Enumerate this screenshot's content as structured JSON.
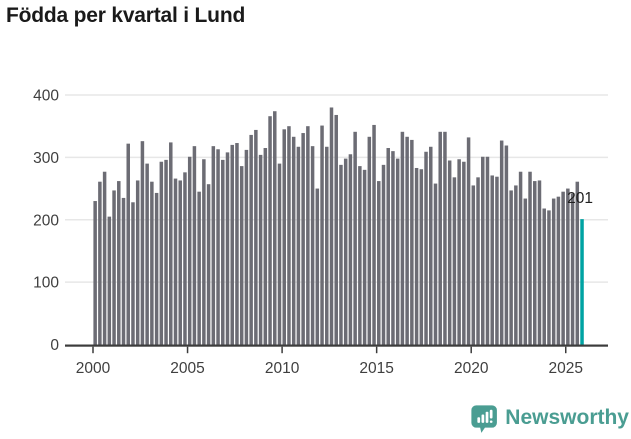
{
  "page_title": "Födda per kvartal i Lund",
  "chart_data": {
    "type": "bar",
    "title": "Födda per kvartal i Lund",
    "xlabel": "",
    "ylabel": "",
    "ylim": [
      0,
      400
    ],
    "grid": true,
    "y_ticks": [
      0,
      100,
      200,
      300,
      400
    ],
    "y_tick_labels": [
      "0",
      "100",
      "200",
      "300",
      "400"
    ],
    "x_ticks": [
      2000,
      2005,
      2010,
      2015,
      2020,
      2025
    ],
    "x_tick_labels": [
      "2000",
      "2005",
      "2010",
      "2015",
      "2020",
      "2025"
    ],
    "bar_color": "#6c6c74",
    "highlight_color": "#00a3a3",
    "highlight_index": 103,
    "annotation": {
      "text": "201",
      "target": "2025-Q4"
    },
    "categories": [
      "2000-Q1",
      "2000-Q2",
      "2000-Q3",
      "2000-Q4",
      "2001-Q1",
      "2001-Q2",
      "2001-Q3",
      "2001-Q4",
      "2002-Q1",
      "2002-Q2",
      "2002-Q3",
      "2002-Q4",
      "2003-Q1",
      "2003-Q2",
      "2003-Q3",
      "2003-Q4",
      "2004-Q1",
      "2004-Q2",
      "2004-Q3",
      "2004-Q4",
      "2005-Q1",
      "2005-Q2",
      "2005-Q3",
      "2005-Q4",
      "2006-Q1",
      "2006-Q2",
      "2006-Q3",
      "2006-Q4",
      "2007-Q1",
      "2007-Q2",
      "2007-Q3",
      "2007-Q4",
      "2008-Q1",
      "2008-Q2",
      "2008-Q3",
      "2008-Q4",
      "2009-Q1",
      "2009-Q2",
      "2009-Q3",
      "2009-Q4",
      "2010-Q1",
      "2010-Q2",
      "2010-Q3",
      "2010-Q4",
      "2011-Q1",
      "2011-Q2",
      "2011-Q3",
      "2011-Q4",
      "2012-Q1",
      "2012-Q2",
      "2012-Q3",
      "2012-Q4",
      "2013-Q1",
      "2013-Q2",
      "2013-Q3",
      "2013-Q4",
      "2014-Q1",
      "2014-Q2",
      "2014-Q3",
      "2014-Q4",
      "2015-Q1",
      "2015-Q2",
      "2015-Q3",
      "2015-Q4",
      "2016-Q1",
      "2016-Q2",
      "2016-Q3",
      "2016-Q4",
      "2017-Q1",
      "2017-Q2",
      "2017-Q3",
      "2017-Q4",
      "2018-Q1",
      "2018-Q2",
      "2018-Q3",
      "2018-Q4",
      "2019-Q1",
      "2019-Q2",
      "2019-Q3",
      "2019-Q4",
      "2020-Q1",
      "2020-Q2",
      "2020-Q3",
      "2020-Q4",
      "2021-Q1",
      "2021-Q2",
      "2021-Q3",
      "2021-Q4",
      "2022-Q1",
      "2022-Q2",
      "2022-Q3",
      "2022-Q4",
      "2023-Q1",
      "2023-Q2",
      "2023-Q3",
      "2023-Q4",
      "2024-Q1",
      "2024-Q2",
      "2024-Q3",
      "2024-Q4",
      "2025-Q1",
      "2025-Q2",
      "2025-Q3",
      "2025-Q4"
    ],
    "values": [
      230,
      261,
      277,
      205,
      247,
      262,
      235,
      322,
      228,
      263,
      326,
      290,
      261,
      243,
      293,
      296,
      324,
      266,
      263,
      276,
      301,
      318,
      245,
      297,
      257,
      318,
      313,
      296,
      308,
      320,
      323,
      286,
      312,
      336,
      344,
      304,
      315,
      366,
      374,
      290,
      345,
      350,
      333,
      317,
      339,
      350,
      318,
      250,
      351,
      317,
      380,
      368,
      288,
      298,
      305,
      341,
      286,
      280,
      333,
      352,
      262,
      288,
      315,
      310,
      298,
      341,
      333,
      328,
      283,
      281,
      309,
      317,
      258,
      341,
      341,
      295,
      268,
      297,
      293,
      332,
      255,
      268,
      301,
      301,
      271,
      269,
      327,
      319,
      247,
      255,
      277,
      234,
      277,
      262,
      263,
      218,
      215,
      234,
      237,
      245,
      250,
      242,
      261,
      201
    ]
  },
  "footer": {
    "brand": "Newsworthy",
    "brand_color": "#4a9d92",
    "logo_icon": "speech-bubble-bar-chart"
  },
  "colors": {
    "title_text": "#1a1a1a",
    "axis_line": "#3c3c3c",
    "tick_label": "#3f3f3f",
    "gridline": "#e7e7e7",
    "background": "#ffffff"
  }
}
